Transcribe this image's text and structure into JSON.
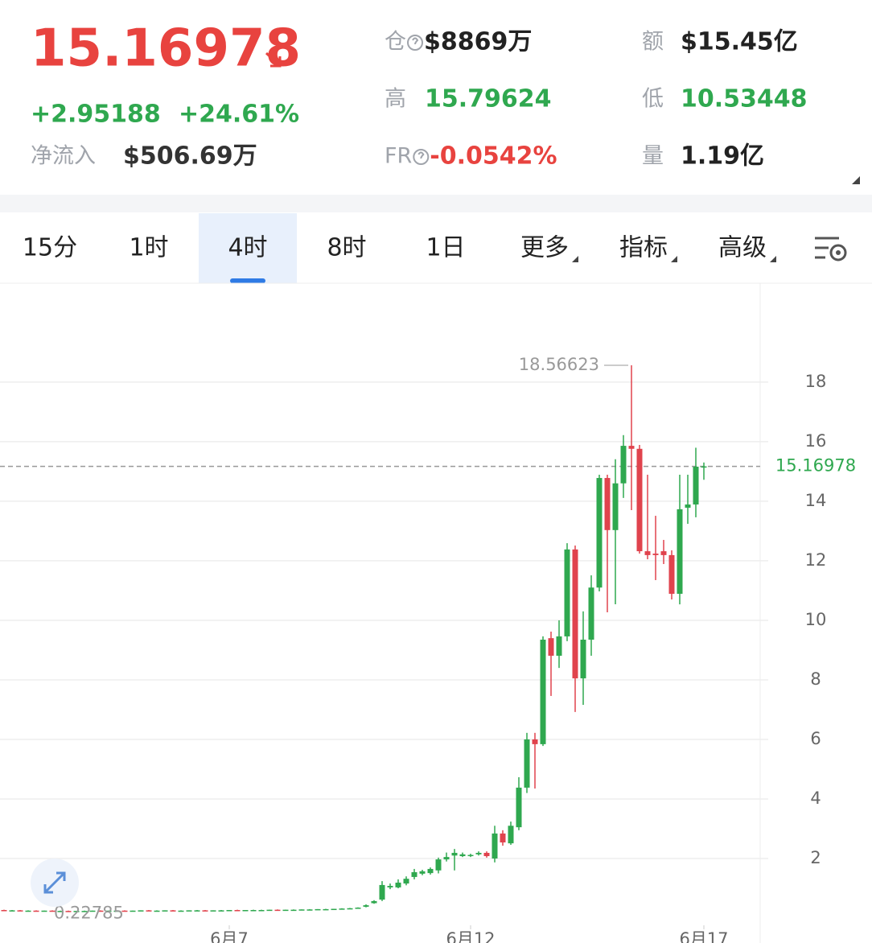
{
  "header": {
    "price": "15.16978",
    "change": "+2.95188",
    "change_pct": "+24.61%",
    "net_inflow_label": "净流入",
    "net_inflow": "$506.69万",
    "stats": [
      {
        "label": "仓",
        "value": "$8869万",
        "color": "#222222"
      },
      {
        "label": "额",
        "value": "$15.45亿",
        "color": "#222222"
      },
      {
        "label": "高",
        "value": "15.79624",
        "color": "#2fa84f"
      },
      {
        "label": "低",
        "value": "10.53448",
        "color": "#2fa84f"
      },
      {
        "label": "FR",
        "value": "-0.0542%",
        "color": "#e8433f"
      },
      {
        "label": "量",
        "value": "1.19亿",
        "color": "#222222"
      }
    ]
  },
  "tabs": [
    {
      "label": "15分",
      "active": false
    },
    {
      "label": "1时",
      "active": false
    },
    {
      "label": "4时",
      "active": true
    },
    {
      "label": "8时",
      "active": false
    },
    {
      "label": "1日",
      "active": false
    },
    {
      "label": "更多",
      "active": false
    },
    {
      "label": "指标",
      "active": false
    },
    {
      "label": "高级",
      "active": false
    }
  ],
  "chart_data": {
    "type": "candlestick",
    "up_color": "#2fa84f",
    "down_color": "#e0434d",
    "grid": true,
    "ylim": [
      0,
      21.24
    ],
    "yticks": [
      2,
      4,
      6,
      8,
      10,
      12,
      14,
      16,
      18
    ],
    "xlim": [
      -0.5,
      94
    ],
    "xticks": [
      {
        "value": 28,
        "label": "6月7"
      },
      {
        "value": 58,
        "label": "6月12"
      },
      {
        "value": 87,
        "label": "6月17"
      }
    ],
    "last_price": 15.16978,
    "max_value": 18.56623,
    "min_value": 0.22785,
    "ohlc": [
      [
        0.27,
        0.28,
        0.26,
        0.26
      ],
      [
        0.26,
        0.27,
        0.25,
        0.26
      ],
      [
        0.26,
        0.27,
        0.25,
        0.25
      ],
      [
        0.25,
        0.26,
        0.24,
        0.25
      ],
      [
        0.25,
        0.26,
        0.24,
        0.24
      ],
      [
        0.24,
        0.25,
        0.23,
        0.25
      ],
      [
        0.25,
        0.26,
        0.24,
        0.24
      ],
      [
        0.24,
        0.25,
        0.23,
        0.24
      ],
      [
        0.24,
        0.25,
        0.23,
        0.23
      ],
      [
        0.23,
        0.24,
        0.23,
        0.24
      ],
      [
        0.24,
        0.25,
        0.22785,
        0.24
      ],
      [
        0.24,
        0.25,
        0.23,
        0.25
      ],
      [
        0.25,
        0.26,
        0.24,
        0.24
      ],
      [
        0.24,
        0.25,
        0.24,
        0.25
      ],
      [
        0.25,
        0.26,
        0.24,
        0.25
      ],
      [
        0.25,
        0.26,
        0.24,
        0.24
      ],
      [
        0.24,
        0.25,
        0.23,
        0.25
      ],
      [
        0.25,
        0.26,
        0.24,
        0.26
      ],
      [
        0.26,
        0.27,
        0.25,
        0.25
      ],
      [
        0.25,
        0.26,
        0.24,
        0.25
      ],
      [
        0.25,
        0.26,
        0.24,
        0.26
      ],
      [
        0.26,
        0.27,
        0.25,
        0.25
      ],
      [
        0.25,
        0.26,
        0.24,
        0.25
      ],
      [
        0.25,
        0.26,
        0.24,
        0.26
      ],
      [
        0.26,
        0.27,
        0.25,
        0.26
      ],
      [
        0.26,
        0.27,
        0.25,
        0.25
      ],
      [
        0.25,
        0.26,
        0.24,
        0.26
      ],
      [
        0.26,
        0.27,
        0.25,
        0.26
      ],
      [
        0.26,
        0.27,
        0.25,
        0.27
      ],
      [
        0.27,
        0.28,
        0.26,
        0.26
      ],
      [
        0.26,
        0.27,
        0.25,
        0.27
      ],
      [
        0.27,
        0.28,
        0.26,
        0.27
      ],
      [
        0.27,
        0.28,
        0.26,
        0.27
      ],
      [
        0.27,
        0.28,
        0.26,
        0.28
      ],
      [
        0.28,
        0.29,
        0.27,
        0.27
      ],
      [
        0.27,
        0.28,
        0.26,
        0.28
      ],
      [
        0.28,
        0.29,
        0.27,
        0.28
      ],
      [
        0.28,
        0.29,
        0.27,
        0.29
      ],
      [
        0.29,
        0.3,
        0.28,
        0.29
      ],
      [
        0.29,
        0.3,
        0.28,
        0.3
      ],
      [
        0.3,
        0.31,
        0.29,
        0.3
      ],
      [
        0.3,
        0.31,
        0.29,
        0.31
      ],
      [
        0.31,
        0.33,
        0.3,
        0.32
      ],
      [
        0.32,
        0.34,
        0.31,
        0.33
      ],
      [
        0.33,
        0.36,
        0.32,
        0.35
      ],
      [
        0.38,
        0.46,
        0.36,
        0.43
      ],
      [
        0.5,
        0.6,
        0.48,
        0.57
      ],
      [
        0.62,
        1.24,
        0.57,
        1.11
      ],
      [
        1.03,
        1.16,
        0.97,
        1.08
      ],
      [
        1.03,
        1.3,
        1.0,
        1.19
      ],
      [
        1.16,
        1.4,
        1.1,
        1.32
      ],
      [
        1.38,
        1.65,
        1.3,
        1.54
      ],
      [
        1.49,
        1.62,
        1.44,
        1.57
      ],
      [
        1.51,
        1.7,
        1.46,
        1.65
      ],
      [
        1.6,
        2.03,
        1.5,
        1.97
      ],
      [
        1.97,
        2.2,
        1.9,
        2.05
      ],
      [
        2.1,
        2.32,
        1.6,
        2.19
      ],
      [
        2.08,
        2.2,
        2.05,
        2.14
      ],
      [
        2.1,
        2.16,
        2.05,
        2.12
      ],
      [
        2.14,
        2.24,
        2.1,
        2.19
      ],
      [
        2.19,
        2.24,
        2.03,
        2.08
      ],
      [
        2.0,
        3.1,
        1.87,
        2.84
      ],
      [
        2.84,
        2.95,
        2.43,
        2.54
      ],
      [
        2.51,
        3.24,
        2.46,
        3.1
      ],
      [
        3.05,
        4.73,
        2.95,
        4.38
      ],
      [
        4.38,
        6.22,
        4.2,
        6.0
      ],
      [
        6.0,
        6.22,
        4.35,
        5.84
      ],
      [
        5.84,
        9.46,
        5.78,
        9.35
      ],
      [
        9.4,
        9.62,
        7.46,
        8.81
      ],
      [
        8.81,
        10.0,
        8.4,
        9.46
      ],
      [
        9.46,
        12.59,
        9.3,
        12.38
      ],
      [
        12.38,
        12.51,
        6.92,
        8.05
      ],
      [
        8.05,
        10.3,
        7.16,
        9.35
      ],
      [
        9.35,
        11.51,
        8.81,
        11.1
      ],
      [
        11.1,
        14.89,
        10.97,
        14.78
      ],
      [
        14.78,
        14.89,
        10.27,
        13.03
      ],
      [
        13.03,
        15.41,
        10.54,
        14.6
      ],
      [
        14.6,
        16.22,
        14.11,
        15.86
      ],
      [
        15.86,
        18.56623,
        13.7,
        15.76
      ],
      [
        15.76,
        15.89,
        12.24,
        12.32
      ],
      [
        12.32,
        14.89,
        12.05,
        12.19
      ],
      [
        12.24,
        13.51,
        11.35,
        12.19
      ],
      [
        12.32,
        12.7,
        11.89,
        12.19
      ],
      [
        12.19,
        12.35,
        10.7,
        10.89
      ],
      [
        10.89,
        14.89,
        10.53448,
        13.73
      ],
      [
        13.78,
        14.89,
        13.24,
        13.89
      ],
      [
        13.89,
        15.79624,
        13.46,
        15.16
      ],
      [
        15.14,
        15.3,
        14.72,
        15.16978
      ]
    ]
  }
}
